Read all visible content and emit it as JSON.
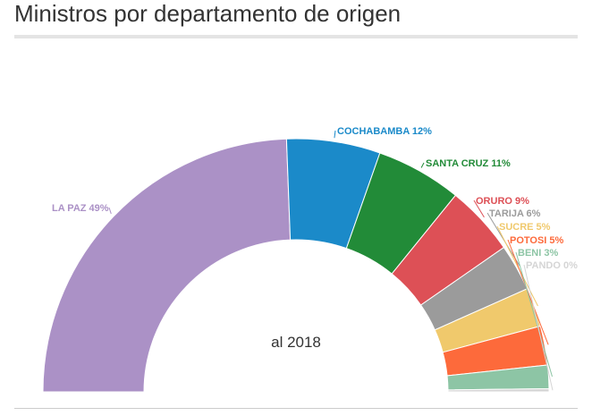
{
  "title": "Ministros por departamento de origen",
  "chart_data": {
    "type": "pie",
    "subtype": "half-donut",
    "center_label": "al 2018",
    "slices": [
      {
        "name": "LA PAZ",
        "label": "LA PAZ 49%",
        "value": 49,
        "color": "#ab91c6"
      },
      {
        "name": "COCHABAMBA",
        "label": "COCHABAMBA 12%",
        "value": 12,
        "color": "#1b8ac9"
      },
      {
        "name": "SANTA CRUZ",
        "label": "SANTA CRUZ 11%",
        "value": 11,
        "color": "#228b38"
      },
      {
        "name": "ORURO",
        "label": "ORURO 9%",
        "value": 9,
        "color": "#dd5056"
      },
      {
        "name": "TARIJA",
        "label": "TARIJA 6%",
        "value": 6,
        "color": "#9b9b9b"
      },
      {
        "name": "SUCRE",
        "label": "SUCRE 5%",
        "value": 5,
        "color": "#f0c96c"
      },
      {
        "name": "POTOSI",
        "label": "POTOSI 5%",
        "value": 5,
        "color": "#fd6a3b"
      },
      {
        "name": "BENI",
        "label": "BENI 3%",
        "value": 3,
        "color": "#8dc5a5"
      },
      {
        "name": "PANDO",
        "label": "PANDO 0%",
        "value": 0.4,
        "color": "#d5d5d5"
      }
    ]
  }
}
